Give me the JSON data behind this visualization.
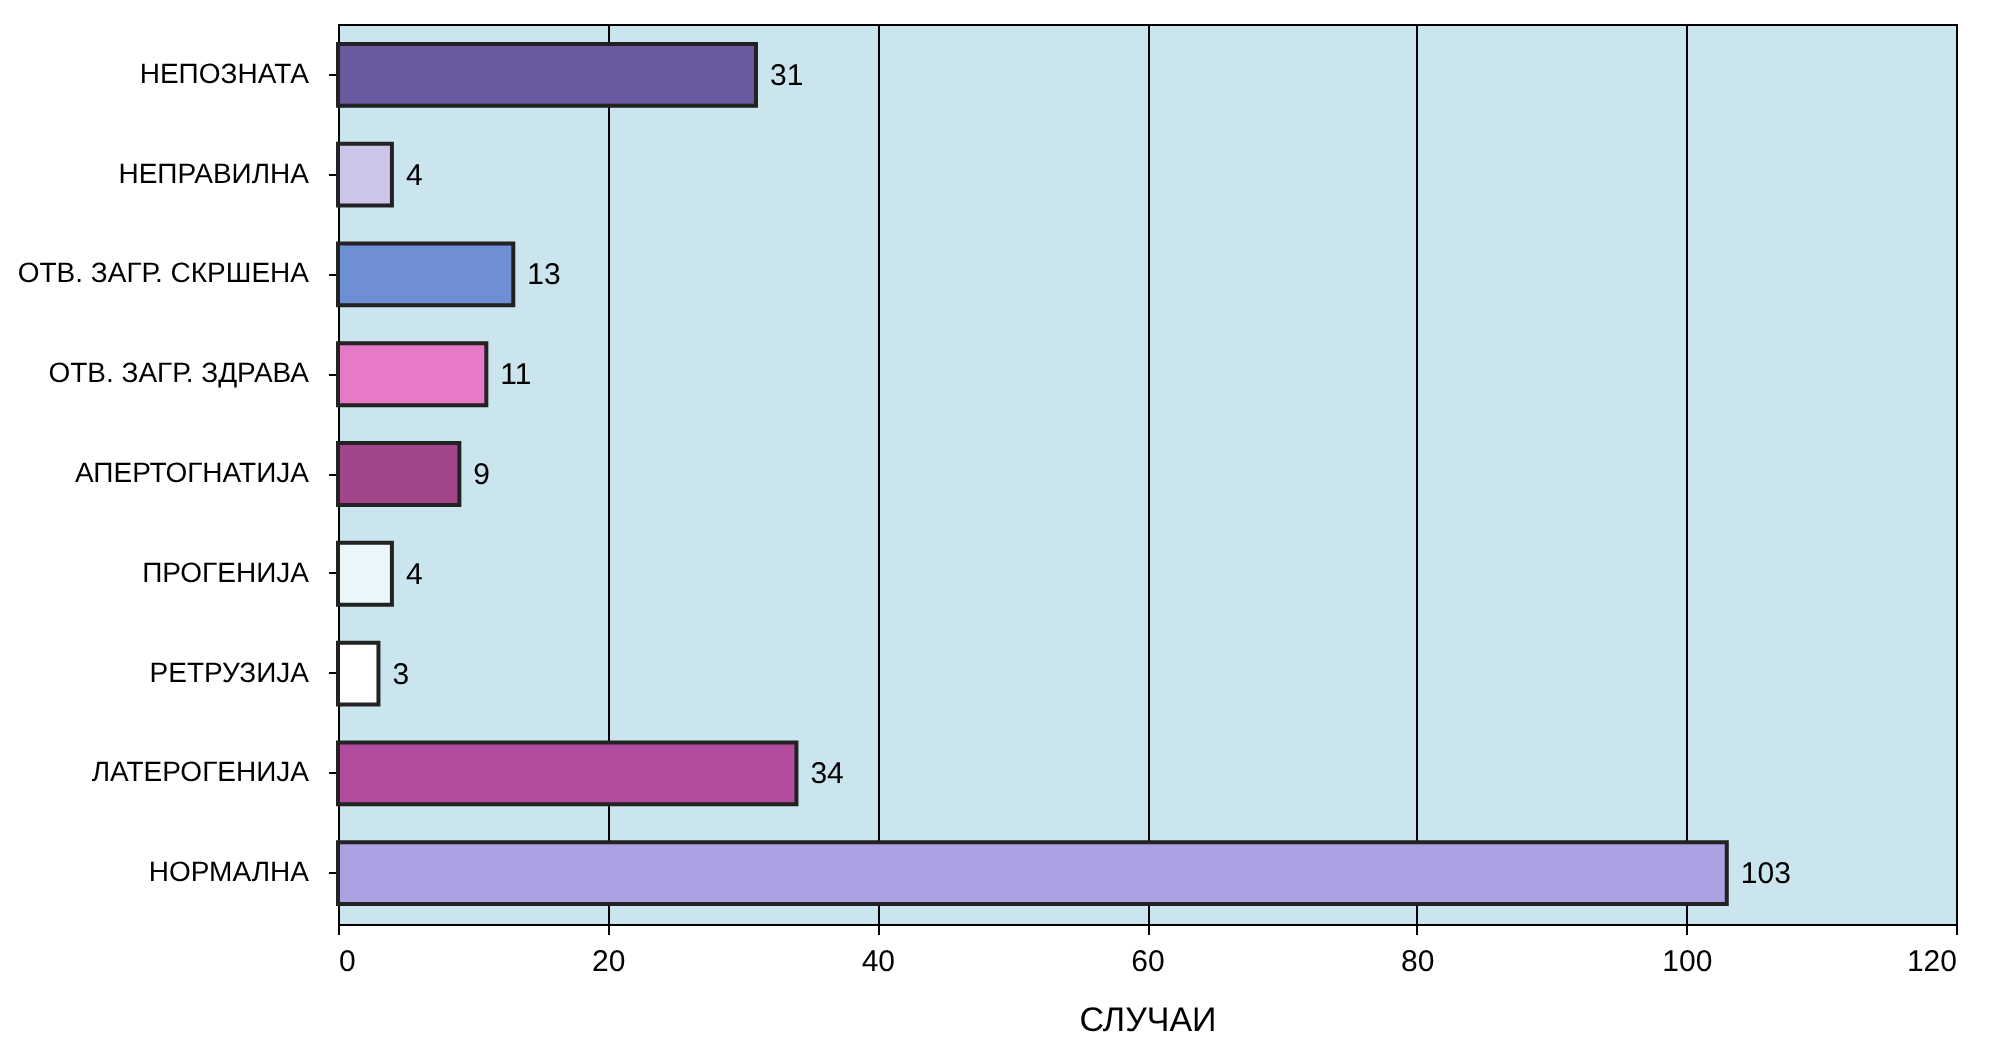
{
  "chart_data": {
    "type": "bar",
    "orientation": "horizontal",
    "xlabel": "СЛУЧАИ",
    "categories": [
      "НЕПОЗНАТА",
      "НЕПРАВИЛНА",
      "ОТВ. ЗАГР. СКРШЕНА",
      "ОТВ. ЗАГР. ЗДРАВА",
      "АПЕРТОГНАТИЈА",
      "ПРОГЕНИЈА",
      "РЕТРУЗИЈА",
      "ЛАТЕРОГЕНИЈА",
      "НОРМАЛНА"
    ],
    "values": [
      31,
      4,
      13,
      11,
      9,
      4,
      3,
      34,
      103
    ],
    "colors": [
      "#6a5aa0",
      "#cdc4ea",
      "#6e8ed6",
      "#e679c8",
      "#a2458a",
      "#eaf6fa",
      "#ffffff",
      "#b24c9e",
      "#aaa2e2"
    ],
    "xlim": [
      0,
      120
    ],
    "xticks": [
      0,
      20,
      40,
      60,
      80,
      100,
      120
    ],
    "grid": "x",
    "data_labels": true
  }
}
